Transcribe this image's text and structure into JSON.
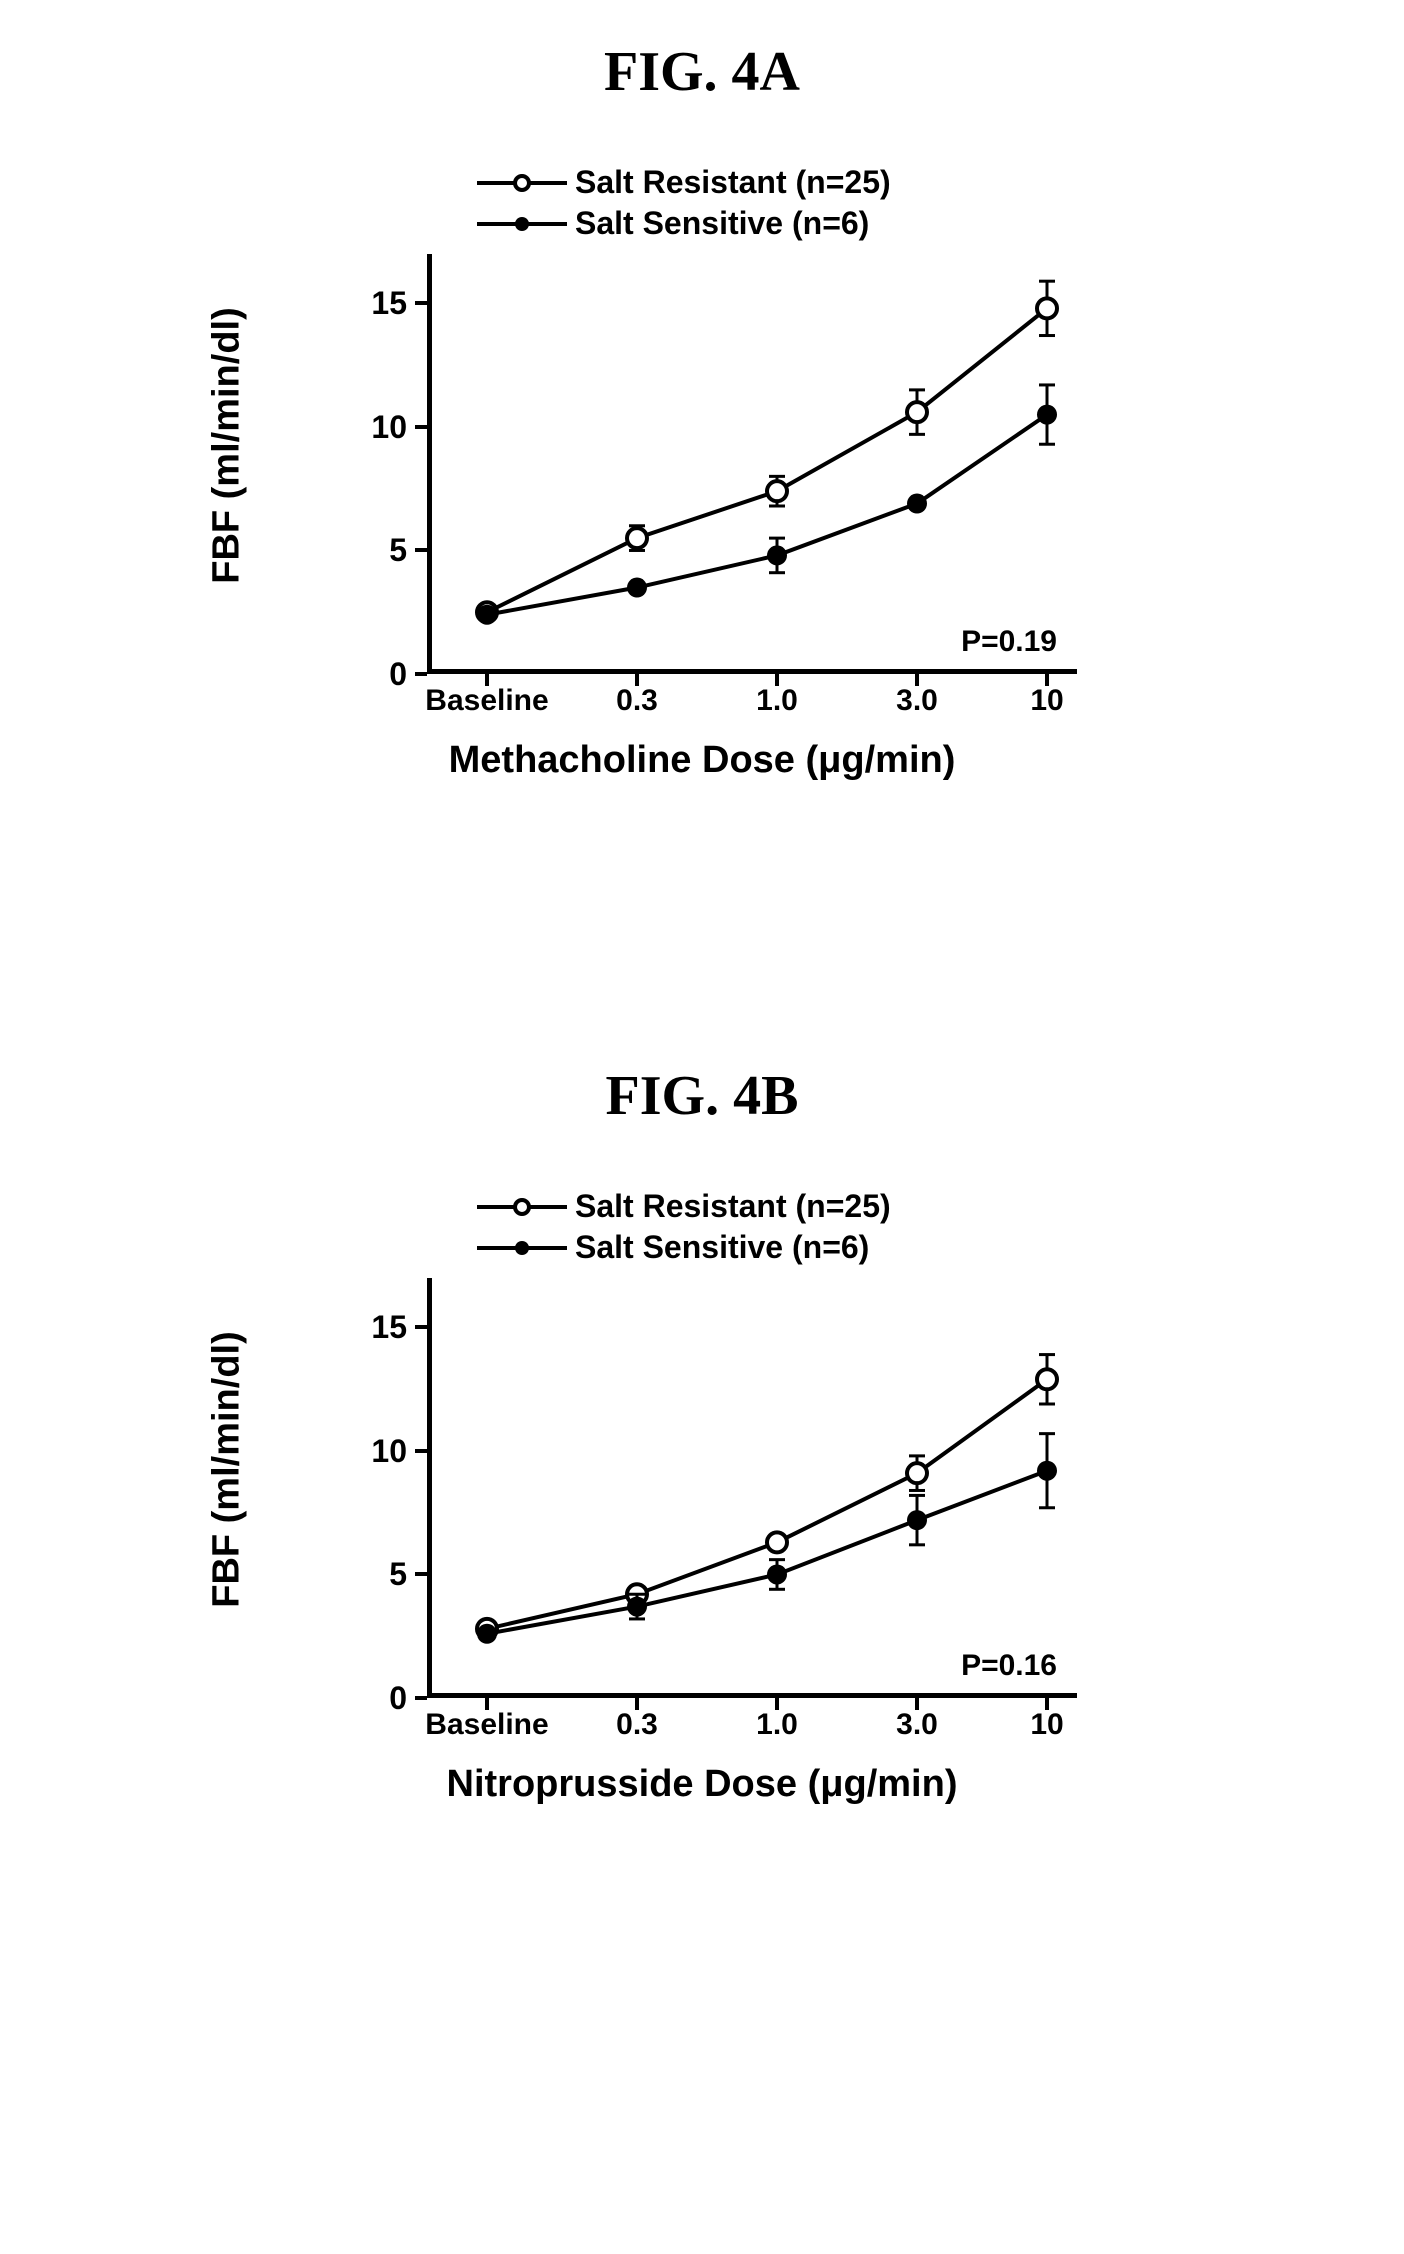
{
  "figures": [
    {
      "title": "FIG. 4A",
      "ylabel": "FBF (ml/min/dl)",
      "xlabel": "Methacholine Dose (μg/min)",
      "p_value": "P=0.19",
      "ylim": [
        0,
        17
      ],
      "yticks": [
        0,
        5,
        10,
        15
      ],
      "xticks": [
        "Baseline",
        "0.3",
        "1.0",
        "3.0",
        "10"
      ],
      "x_positions": [
        60,
        210,
        350,
        490,
        620
      ],
      "legend": [
        {
          "label": "Salt Resistant (n=25)",
          "marker": "open"
        },
        {
          "label": "Salt Sensitive (n=6)",
          "marker": "filled"
        }
      ],
      "series": [
        {
          "marker": "open",
          "color": "#000000",
          "values": [
            2.5,
            5.5,
            7.4,
            10.6,
            14.8
          ],
          "err": [
            0,
            0.5,
            0.6,
            0.9,
            1.1
          ]
        },
        {
          "marker": "filled",
          "color": "#000000",
          "values": [
            2.4,
            3.5,
            4.8,
            6.9,
            10.5
          ],
          "err": [
            0,
            0,
            0.7,
            0,
            1.2
          ]
        }
      ],
      "title_fontsize": 56,
      "label_fontsize": 38,
      "tick_fontsize": 32,
      "line_width": 4,
      "marker_size": 10,
      "background_color": "#ffffff",
      "axis_color": "#000000"
    },
    {
      "title": "FIG. 4B",
      "ylabel": "FBF (ml/min/dl)",
      "xlabel": "Nitroprusside Dose (μg/min)",
      "p_value": "P=0.16",
      "ylim": [
        0,
        17
      ],
      "yticks": [
        0,
        5,
        10,
        15
      ],
      "xticks": [
        "Baseline",
        "0.3",
        "1.0",
        "3.0",
        "10"
      ],
      "x_positions": [
        60,
        210,
        350,
        490,
        620
      ],
      "legend": [
        {
          "label": "Salt Resistant (n=25)",
          "marker": "open"
        },
        {
          "label": "Salt Sensitive (n=6)",
          "marker": "filled"
        }
      ],
      "series": [
        {
          "marker": "open",
          "color": "#000000",
          "values": [
            2.8,
            4.2,
            6.3,
            9.1,
            12.9
          ],
          "err": [
            0,
            0,
            0,
            0.7,
            1.0
          ]
        },
        {
          "marker": "filled",
          "color": "#000000",
          "values": [
            2.6,
            3.7,
            5.0,
            7.2,
            9.2
          ],
          "err": [
            0,
            0.5,
            0.6,
            1.0,
            1.5
          ]
        }
      ],
      "title_fontsize": 56,
      "label_fontsize": 38,
      "tick_fontsize": 32,
      "line_width": 4,
      "marker_size": 10,
      "background_color": "#ffffff",
      "axis_color": "#000000"
    }
  ]
}
